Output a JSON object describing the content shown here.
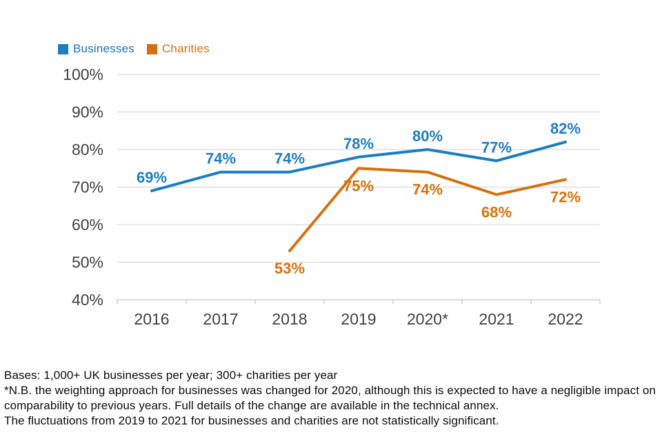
{
  "legend": {
    "items": [
      {
        "label": "Businesses",
        "color": "#1d7dc4"
      },
      {
        "label": "Charities",
        "color": "#d4700e"
      }
    ]
  },
  "chart_data": {
    "type": "line",
    "categories": [
      "2016",
      "2017",
      "2018",
      "2019",
      "2020*",
      "2021",
      "2022"
    ],
    "series": [
      {
        "name": "Businesses",
        "color": "#1d7dc4",
        "values": [
          69,
          74,
          74,
          78,
          80,
          77,
          82
        ],
        "labels": [
          "69%",
          "74%",
          "74%",
          "78%",
          "80%",
          "77%",
          "82%"
        ],
        "label_position": "above"
      },
      {
        "name": "Charities",
        "color": "#d4700e",
        "values": [
          null,
          null,
          53,
          75,
          74,
          68,
          72
        ],
        "labels": [
          null,
          null,
          "53%",
          "75%",
          "74%",
          "68%",
          "72%"
        ],
        "label_position": "below"
      }
    ],
    "title": "",
    "xlabel": "",
    "ylabel": "",
    "ylim": [
      40,
      100
    ],
    "yticks": [
      100,
      90,
      80,
      70,
      60,
      50,
      40
    ],
    "ytick_labels": [
      "100%",
      "90%",
      "80%",
      "70%",
      "60%",
      "50%",
      "40%"
    ],
    "grid": true,
    "legend_position": "top-left"
  },
  "colors": {
    "grid": "#d9d9d9",
    "axis_line": "#c6c6c6",
    "axis_text": "#404040",
    "footer_text": "#0b0c0c",
    "background": "#ffffff"
  },
  "footer": {
    "lines": [
      "Bases: 1,000+ UK businesses per year; 300+ charities per year",
      "*N.B. the weighting approach for businesses was changed for 2020, although this is expected to have a negligible impact on comparability to previous years. Full details of the change are available in the technical annex.",
      "The fluctuations from 2019 to 2021 for businesses and charities are not statistically significant."
    ]
  }
}
